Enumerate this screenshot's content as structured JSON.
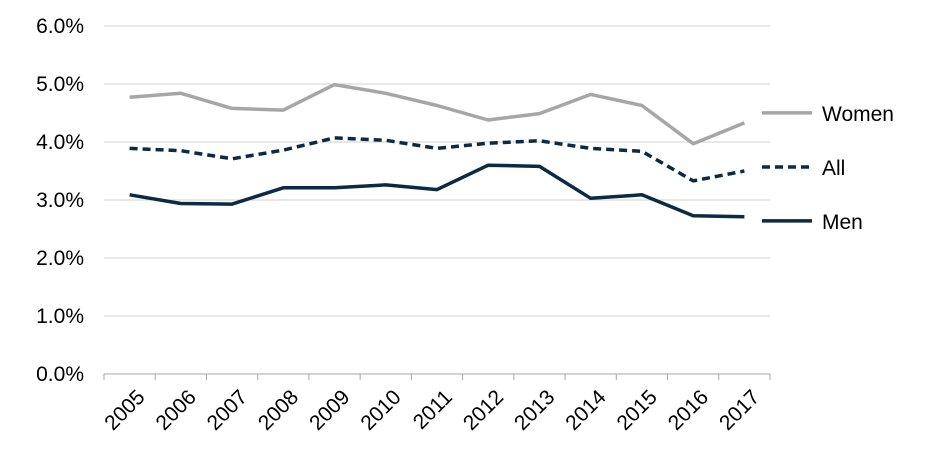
{
  "chart_data": {
    "type": "line",
    "categories": [
      "2005",
      "2006",
      "2007",
      "2008",
      "2009",
      "2010",
      "2011",
      "2012",
      "2013",
      "2014",
      "2015",
      "2016",
      "2017"
    ],
    "series": [
      {
        "name": "Women",
        "values": [
          4.77,
          4.84,
          4.58,
          4.55,
          4.99,
          4.84,
          4.63,
          4.38,
          4.49,
          4.82,
          4.63,
          3.97,
          4.33
        ],
        "color": "#a6a6a6",
        "dash": "solid"
      },
      {
        "name": "All",
        "values": [
          3.89,
          3.85,
          3.71,
          3.86,
          4.07,
          4.03,
          3.89,
          3.98,
          4.02,
          3.89,
          3.84,
          3.33,
          3.5
        ],
        "color": "#0b2a44",
        "dash": "dashed"
      },
      {
        "name": "Men",
        "values": [
          3.09,
          2.94,
          2.93,
          3.21,
          3.21,
          3.26,
          3.18,
          3.6,
          3.58,
          3.03,
          3.09,
          2.73,
          2.71
        ],
        "color": "#0b2a44",
        "dash": "solid"
      }
    ],
    "y_ticks": [
      "0.0%",
      "1.0%",
      "2.0%",
      "3.0%",
      "4.0%",
      "5.0%",
      "6.0%"
    ],
    "ylim": [
      0,
      6
    ],
    "y_unit": "%",
    "grid": true,
    "legend_placement": "right"
  }
}
